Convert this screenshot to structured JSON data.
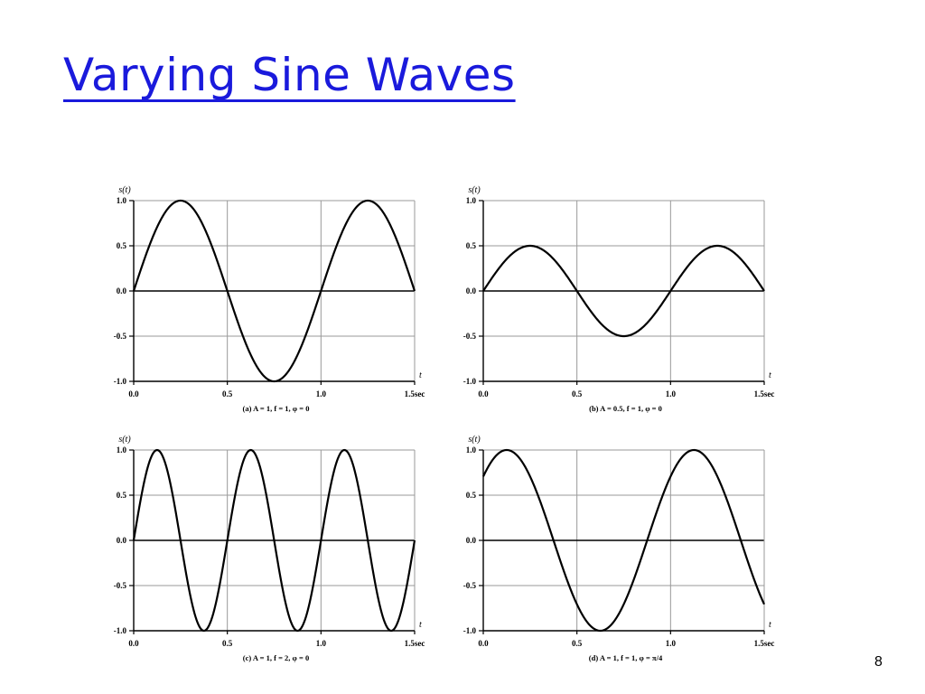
{
  "slide": {
    "title": "Varying Sine Waves",
    "page_number": "8"
  },
  "chart_data": [
    {
      "type": "line",
      "ylabel": "s(t)",
      "xlabel": "t",
      "caption": "(a) A = 1, f = 1, φ = 0",
      "x_ticks": [
        "0.0",
        "0.5",
        "1.0",
        "1.5sec"
      ],
      "y_ticks": [
        "1.0",
        "0.5",
        "0.0",
        "-0.5",
        "-1.0"
      ],
      "xlim": [
        0,
        1.5
      ],
      "ylim": [
        -1,
        1
      ],
      "grid": true,
      "series": [
        {
          "amplitude": 1,
          "frequency": 1,
          "phase": 0
        }
      ]
    },
    {
      "type": "line",
      "ylabel": "s(t)",
      "xlabel": "t",
      "caption": "(b) A = 0.5, f = 1, φ = 0",
      "x_ticks": [
        "0.0",
        "0.5",
        "1.0",
        "1.5sec"
      ],
      "y_ticks": [
        "1.0",
        "0.5",
        "0.0",
        "-0.5",
        "-1.0"
      ],
      "xlim": [
        0,
        1.5
      ],
      "ylim": [
        -1,
        1
      ],
      "grid": true,
      "series": [
        {
          "amplitude": 0.5,
          "frequency": 1,
          "phase": 0
        }
      ]
    },
    {
      "type": "line",
      "ylabel": "s(t)",
      "xlabel": "t",
      "caption": "(c) A = 1, f = 2, φ = 0",
      "x_ticks": [
        "0.0",
        "0.5",
        "1.0",
        "1.5sec"
      ],
      "y_ticks": [
        "1.0",
        "0.5",
        "0.0",
        "-0.5",
        "-1.0"
      ],
      "xlim": [
        0,
        1.5
      ],
      "ylim": [
        -1,
        1
      ],
      "grid": true,
      "series": [
        {
          "amplitude": 1,
          "frequency": 2,
          "phase": 0
        }
      ]
    },
    {
      "type": "line",
      "ylabel": "s(t)",
      "xlabel": "t",
      "caption": "(d) A = 1, f = 1, φ = π/4",
      "x_ticks": [
        "0.0",
        "0.5",
        "1.0",
        "1.5sec"
      ],
      "y_ticks": [
        "1.0",
        "0.5",
        "0.0",
        "-0.5",
        "-1.0"
      ],
      "xlim": [
        0,
        1.5
      ],
      "ylim": [
        -1,
        1
      ],
      "grid": true,
      "series": [
        {
          "amplitude": 1,
          "frequency": 1,
          "phase": 0.7854
        }
      ]
    }
  ]
}
